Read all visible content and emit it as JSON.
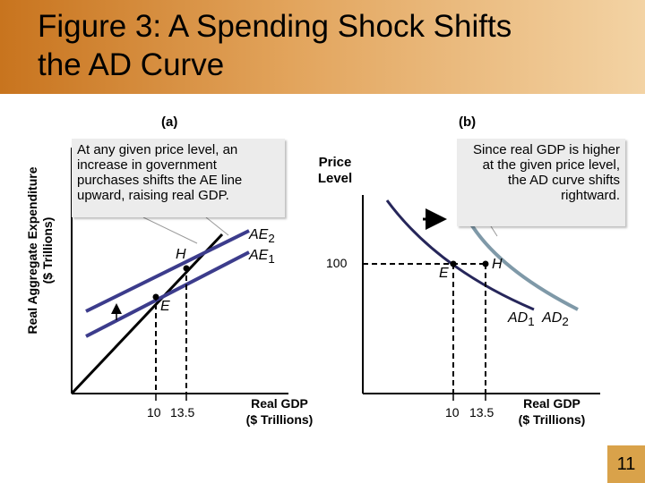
{
  "title": {
    "line1": "Figure 3:  A Spending Shock Shifts",
    "line2": "the AD Curve"
  },
  "panel_a": {
    "label": "(a)",
    "y_axis_label_line1": "Real Aggregate Expenditure",
    "y_axis_label_line2": "($ Trillions)",
    "callout": "At any given price level, an increase in government purchases shifts the AE line upward, raising real GDP.",
    "line_labels": {
      "ae2": "AE",
      "ae2_sub": "2",
      "ae1": "AE",
      "ae1_sub": "1"
    },
    "points": {
      "h": "H",
      "e": "E"
    },
    "x_ticks": [
      "10",
      "13.5"
    ],
    "x_axis_label_line1": "Real GDP",
    "x_axis_label_line2": "($ Trillions)"
  },
  "panel_b": {
    "label": "(b)",
    "y_axis_label_line1": "Price",
    "y_axis_label_line2": "Level",
    "price_tick": "100",
    "callout": "Since real GDP is higher at the given price level, the AD curve shifts rightward.",
    "points": {
      "e": "E",
      "h": "H"
    },
    "curve_labels": {
      "ad1": "AD",
      "ad1_sub": "1",
      "ad2": "AD",
      "ad2_sub": "2"
    },
    "x_ticks": [
      "10",
      "13.5"
    ],
    "x_axis_label_line1": "Real GDP",
    "x_axis_label_line2": "($ Trillions)"
  },
  "colors": {
    "ae_line": "#3c3c8c",
    "ad1_curve": "#26265a",
    "ad2_curve": "#7f99a8",
    "arrow": "#000000",
    "slide_number_bg": "#d9a24a"
  },
  "slide_number": "11"
}
